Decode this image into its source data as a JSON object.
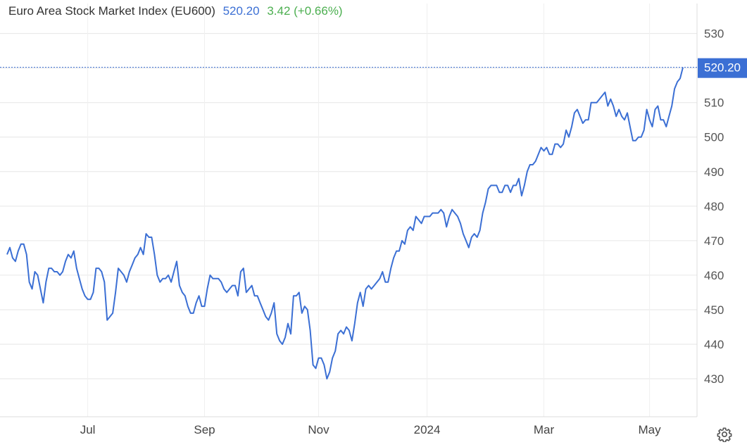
{
  "header": {
    "title": "Euro Area Stock Market Index (EU600)",
    "price": "520.20",
    "change": "3.42 (+0.66%)"
  },
  "colors": {
    "line": "#3b6fd4",
    "change_up": "#4caf50",
    "grid": "#e6e6e6",
    "label_bg": "#3b6fd4"
  },
  "icons": {
    "settings": "gear-icon"
  },
  "chart_data": {
    "type": "line",
    "title": "Euro Area Stock Market Index (EU600)",
    "xlabel": "",
    "ylabel": "",
    "ylim": [
      419,
      534
    ],
    "y_ticks": [
      430,
      440,
      450,
      460,
      470,
      480,
      490,
      500,
      510,
      520,
      530
    ],
    "y_tick_labels": [
      "430",
      "440",
      "450",
      "460",
      "470",
      "480",
      "490",
      "500",
      "510",
      "",
      "530"
    ],
    "x_tick_labels": [
      "Jul",
      "Sep",
      "Nov",
      "2024",
      "Mar",
      "May"
    ],
    "x_tick_index": [
      29,
      71,
      112,
      151,
      193,
      231
    ],
    "last_value_label": "520.20",
    "grid": true,
    "values": [
      466,
      468,
      465,
      464,
      467,
      469,
      469,
      466,
      458,
      456,
      461,
      460,
      456,
      452,
      458,
      462,
      462,
      461,
      461,
      460,
      461,
      464,
      466,
      465,
      467,
      462,
      459,
      456,
      454,
      453,
      453,
      455,
      462,
      462,
      461,
      458,
      447,
      448,
      449,
      455,
      462,
      461,
      460,
      458,
      461,
      463,
      465,
      466,
      468,
      466,
      472,
      471,
      471,
      466,
      460,
      458,
      459,
      459,
      460,
      458,
      461,
      464,
      457,
      455,
      454,
      451,
      449,
      449,
      452,
      454,
      451,
      451,
      456,
      460,
      459,
      459,
      459,
      458,
      456,
      455,
      456,
      457,
      457,
      454,
      461,
      462,
      455,
      456,
      457,
      454,
      454,
      452,
      450,
      448,
      447,
      449,
      452,
      443,
      441,
      440,
      442,
      446,
      443,
      454,
      454,
      455,
      449,
      451,
      450,
      444,
      434,
      433,
      436,
      436,
      434,
      430,
      432,
      436,
      438,
      443,
      444,
      443,
      445,
      444,
      441,
      446,
      452,
      455,
      451,
      456,
      457,
      456,
      457,
      458,
      459,
      461,
      458,
      458,
      462,
      465,
      467,
      467,
      470,
      469,
      473,
      474,
      473,
      477,
      476,
      475,
      477,
      477,
      477,
      478,
      478,
      478,
      479,
      478,
      474,
      477,
      479,
      478,
      477,
      475,
      472,
      470,
      468,
      471,
      472,
      471,
      473,
      478,
      481,
      485,
      486,
      486,
      486,
      484,
      484,
      486,
      486,
      484,
      486,
      486,
      488,
      483,
      486,
      490,
      492,
      492,
      493,
      495,
      497,
      496,
      497,
      495,
      495,
      498,
      498,
      497,
      498,
      502,
      500,
      503,
      507,
      508,
      506,
      504,
      505,
      505,
      510,
      510,
      510,
      511,
      512,
      513,
      509,
      511,
      509,
      506,
      508,
      506,
      505,
      507,
      503,
      499,
      499,
      500,
      500,
      502,
      508,
      505,
      503,
      508,
      509,
      505,
      505,
      503,
      506,
      509,
      514,
      516,
      517,
      520.2
    ]
  }
}
